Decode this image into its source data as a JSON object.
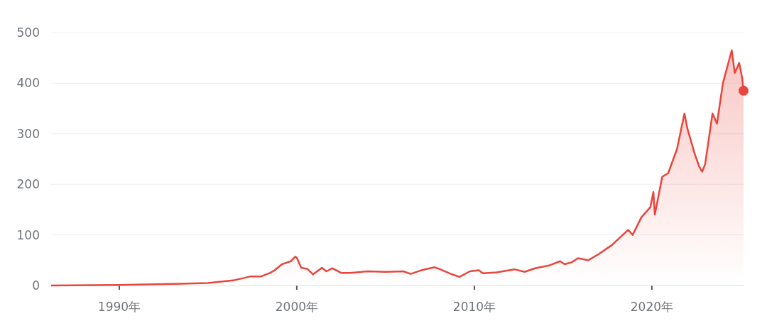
{
  "chart_data": {
    "type": "area",
    "x": [
      "1986-03",
      "1990-01",
      "1993-01",
      "1995-01",
      "1996-06",
      "1997-06",
      "1998-01",
      "1998-07",
      "1998-10",
      "1999-03",
      "1999-06",
      "1999-09",
      "1999-12",
      "2000-01",
      "2000-04",
      "2000-08",
      "2000-12",
      "2001-06",
      "2001-09",
      "2002-01",
      "2002-07",
      "2003-01",
      "2004-01",
      "2005-01",
      "2006-01",
      "2006-06",
      "2007-01",
      "2007-10",
      "2008-01",
      "2008-10",
      "2009-03",
      "2009-10",
      "2010-04",
      "2010-07",
      "2011-04",
      "2012-04",
      "2012-11",
      "2013-06",
      "2014-04",
      "2014-11",
      "2015-02",
      "2015-07",
      "2015-11",
      "2016-06",
      "2017-01",
      "2017-10",
      "2018-09",
      "2018-12",
      "2019-06",
      "2019-12",
      "2020-02",
      "2020-03",
      "2020-08",
      "2020-12",
      "2021-06",
      "2021-11",
      "2022-01",
      "2022-06",
      "2022-09",
      "2022-11",
      "2023-01",
      "2023-06",
      "2023-09",
      "2024-01",
      "2024-07",
      "2024-09",
      "2024-12",
      "2025-02",
      "2025-03"
    ],
    "series": [
      {
        "color": "#e8453c",
        "values": [
          0,
          1,
          3,
          5,
          10,
          18,
          18,
          25,
          30,
          42,
          45,
          48,
          57,
          55,
          35,
          33,
          22,
          35,
          28,
          34,
          25,
          25,
          28,
          27,
          28,
          23,
          30,
          36,
          33,
          22,
          17,
          28,
          30,
          24,
          26,
          32,
          27,
          34,
          40,
          48,
          42,
          46,
          54,
          50,
          62,
          80,
          110,
          100,
          135,
          155,
          185,
          140,
          215,
          222,
          270,
          340,
          310,
          260,
          235,
          225,
          240,
          340,
          320,
          400,
          465,
          420,
          440,
          410,
          385
        ]
      },
      {
        "type": "scatter",
        "color": "#e8453c",
        "x": [
          "2025-03"
        ],
        "values": [
          385
        ]
      }
    ],
    "xlim": [
      "1986-03",
      "2025-03"
    ],
    "xticks": [
      {
        "value": "1990-01",
        "label": "1990年"
      },
      {
        "value": "2000-01",
        "label": "2000年"
      },
      {
        "value": "2010-01",
        "label": "2010年"
      },
      {
        "value": "2020-01",
        "label": "2020年"
      }
    ],
    "ylim": [
      0,
      500
    ],
    "yticks": [
      0,
      100,
      200,
      300,
      400,
      500
    ],
    "grid": "y"
  }
}
